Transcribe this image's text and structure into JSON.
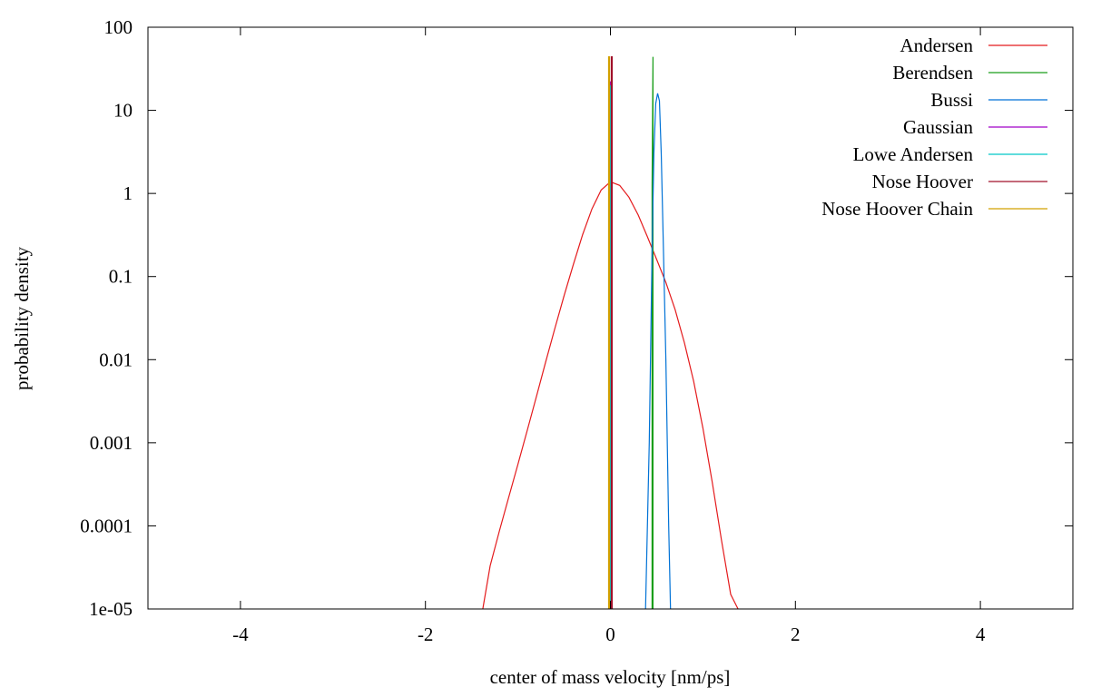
{
  "chart_data": {
    "type": "line",
    "title": "",
    "xlabel": "center of mass velocity [nm/ps]",
    "ylabel": "probability density",
    "xlim": [
      -5,
      5
    ],
    "ylim": [
      1e-05,
      100
    ],
    "yscale": "log",
    "grid": false,
    "legend_position": "top-right",
    "x_ticks": [
      -4,
      -2,
      0,
      2,
      4
    ],
    "x_tick_labels": [
      "-4",
      "-2",
      "0",
      "2",
      "4"
    ],
    "y_ticks": [
      1e-05,
      0.0001,
      0.001,
      0.01,
      0.1,
      1,
      10,
      100
    ],
    "y_tick_labels": [
      "1e-05",
      "0.0001",
      "0.001",
      "0.01",
      "0.1",
      "1",
      "10",
      "100"
    ],
    "series": [
      {
        "name": "Andersen",
        "color": "#e41a1c",
        "x": [
          -1.38,
          -1.3,
          -1.2,
          -1.1,
          -1.0,
          -0.9,
          -0.8,
          -0.7,
          -0.6,
          -0.5,
          -0.4,
          -0.3,
          -0.2,
          -0.1,
          0.0,
          0.1,
          0.2,
          0.3,
          0.4,
          0.5,
          0.6,
          0.7,
          0.8,
          0.9,
          1.0,
          1.1,
          1.2,
          1.3,
          1.38
        ],
        "y": [
          1e-05,
          3.3e-05,
          8.7e-05,
          0.00022,
          0.00055,
          0.0014,
          0.0036,
          0.0094,
          0.024,
          0.059,
          0.14,
          0.32,
          0.65,
          1.1,
          1.38,
          1.25,
          0.9,
          0.55,
          0.3,
          0.16,
          0.085,
          0.04,
          0.016,
          0.0055,
          0.0015,
          0.00034,
          6.8e-05,
          1.5e-05,
          1e-05
        ]
      },
      {
        "name": "Berendsen",
        "color": "#1a9e1a",
        "x": [
          0.45,
          0.45,
          0.46,
          0.46
        ],
        "y": [
          1e-05,
          1.2,
          44,
          1e-05
        ]
      },
      {
        "name": "Bussi",
        "color": "#0072d6",
        "x": [
          0.38,
          0.42,
          0.45,
          0.47,
          0.49,
          0.51,
          0.53,
          0.55,
          0.57,
          0.6,
          0.63,
          0.65
        ],
        "y": [
          1e-05,
          0.001,
          0.2,
          3,
          12,
          16,
          13,
          3,
          0.3,
          0.01,
          0.0001,
          1e-05
        ]
      },
      {
        "name": "Gaussian",
        "color": "#a000c8",
        "x": [
          0.0,
          0.0,
          0.01,
          0.01
        ],
        "y": [
          1e-05,
          22,
          22,
          1e-05
        ]
      },
      {
        "name": "Lowe Andersen",
        "color": "#00c8c8",
        "x": [
          0.0,
          0.0,
          0.0
        ],
        "y": [
          1e-05,
          20,
          1e-05
        ]
      },
      {
        "name": "Nose Hoover",
        "color": "#a0102a",
        "x": [
          0.01,
          0.01,
          0.02,
          0.02
        ],
        "y": [
          1e-05,
          44,
          44,
          1e-05
        ]
      },
      {
        "name": "Nose Hoover Chain",
        "color": "#d2a000",
        "x": [
          -0.02,
          -0.02,
          -0.01,
          -0.01
        ],
        "y": [
          1e-05,
          44,
          44,
          1e-05
        ]
      }
    ]
  }
}
